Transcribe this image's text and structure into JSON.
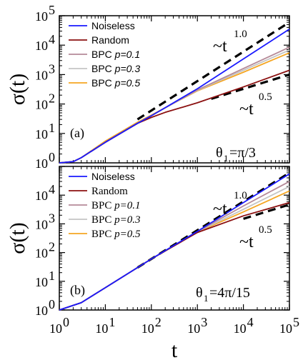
{
  "chart_data": [
    {
      "panel_label": "(a)",
      "type": "line",
      "xscale": "log",
      "yscale": "log",
      "xlim": [
        1,
        100000
      ],
      "ylim": [
        1,
        100000
      ],
      "ylabel": "σ(t)",
      "parameter_label": "θ1=π/3",
      "legend_placement": "top-left",
      "x": [
        1,
        2,
        3,
        10,
        50,
        100,
        200,
        1000,
        10000,
        100000
      ],
      "series": [
        {
          "name": "Noiseless",
          "color": "#1a1aff",
          "values": [
            1,
            1.1,
            1.5,
            5,
            22,
            40,
            75,
            330,
            3400,
            35000
          ]
        },
        {
          "name": "Random",
          "color": "#8b1010",
          "values": [
            1,
            1.1,
            1.5,
            5,
            22,
            35,
            52,
            110,
            380,
            1400
          ]
        },
        {
          "name": "BPC p=0.1",
          "color": "#b58a98",
          "values": [
            1,
            1.1,
            1.5,
            5,
            22,
            40,
            74,
            300,
            1600,
            8500
          ]
        },
        {
          "name": "BPC p=0.3",
          "color": "#c4c4c4",
          "values": [
            1,
            1.1,
            1.5,
            5,
            22,
            40,
            74,
            290,
            1400,
            6800
          ]
        },
        {
          "name": "BPC p=0.5",
          "color": "#f5a623",
          "values": [
            1,
            1.1,
            1.5,
            5.5,
            24,
            42,
            75,
            280,
            1200,
            5500
          ]
        }
      ],
      "guides": [
        {
          "label": "~t^1.0",
          "exponent": 1.0,
          "x": [
            50,
            100000
          ],
          "y": [
            30,
            60000
          ]
        },
        {
          "label": "~t^0.5",
          "exponent": 0.5,
          "x": [
            2000,
            100000
          ],
          "y": [
            150,
            1000
          ]
        }
      ]
    },
    {
      "panel_label": "(b)",
      "type": "line",
      "xscale": "log",
      "yscale": "log",
      "xlim": [
        1,
        100000
      ],
      "ylim": [
        1,
        100000
      ],
      "xlabel": "t",
      "ylabel": "σ(t)",
      "parameter_label": "θ1=4π/15",
      "legend_placement": "top-left",
      "x": [
        1,
        3,
        10,
        100,
        1000,
        10000,
        100000
      ],
      "series": [
        {
          "name": "Noiseless",
          "color": "#1a1aff",
          "values": [
            1,
            1.8,
            6,
            60,
            550,
            5500,
            55000
          ]
        },
        {
          "name": "Random",
          "color": "#8b1010",
          "values": [
            1,
            1.8,
            6,
            60,
            500,
            1900,
            5500
          ]
        },
        {
          "name": "BPC p=0.1",
          "color": "#b58a98",
          "values": [
            1,
            1.8,
            6,
            60,
            540,
            4200,
            30000
          ]
        },
        {
          "name": "BPC p=0.3",
          "color": "#c4c4c4",
          "values": [
            1,
            1.8,
            6,
            60,
            530,
            3200,
            20000
          ]
        },
        {
          "name": "BPC p=0.5",
          "color": "#f5a623",
          "values": [
            1,
            1.8,
            6,
            60,
            520,
            2600,
            14000
          ]
        }
      ],
      "guides": [
        {
          "label": "~t^1.0",
          "exponent": 1.0,
          "x": [
            50,
            100000
          ],
          "y": [
            30,
            60000
          ]
        },
        {
          "label": "~t^0.5",
          "exponent": 0.5,
          "x": [
            10000,
            100000
          ],
          "y": [
            1500,
            4700
          ]
        }
      ]
    }
  ],
  "text": {
    "ylabel": "σ(t)",
    "xlabel": "t",
    "tick_base": "10",
    "exp_approx": "~t",
    "exp_1": "1.0",
    "exp_05": "0.5",
    "theta": "θ",
    "theta_sub": "1",
    "panel_a_theta_value": "=π/3",
    "panel_b_theta_value": "=4π/15",
    "panel_a_label": "(a)",
    "panel_b_label": "(b)",
    "legend": {
      "noiseless": "Noiseless",
      "random": "Random",
      "bpc": "BPC",
      "p01": "p=0.1",
      "p03": "p=0.3",
      "p05": "p=0.5"
    }
  }
}
